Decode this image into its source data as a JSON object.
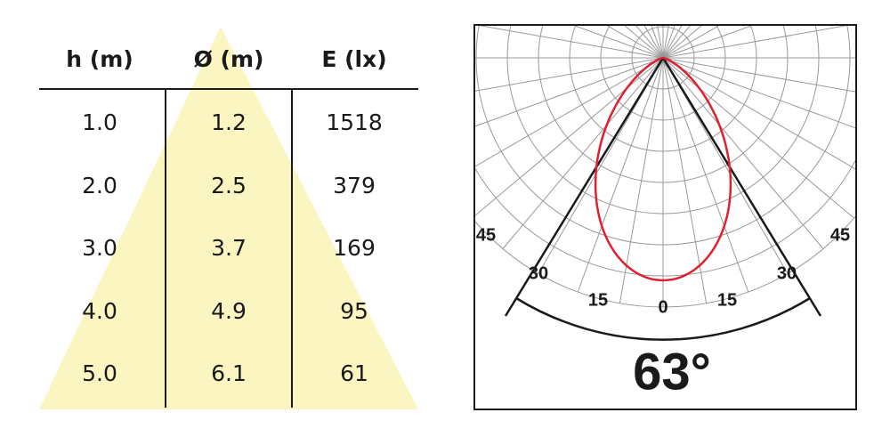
{
  "table": {
    "headers": [
      "h (m)",
      "Ø (m)",
      "E (lx)"
    ],
    "rows": [
      [
        "1.0",
        "1.2",
        "1518"
      ],
      [
        "2.0",
        "2.5",
        "379"
      ],
      [
        "3.0",
        "3.7",
        "169"
      ],
      [
        "4.0",
        "4.9",
        "95"
      ],
      [
        "5.0",
        "6.1",
        "61"
      ]
    ]
  },
  "polar": {
    "angle_labels": [
      "45",
      "30",
      "15",
      "0",
      "15",
      "30",
      "45"
    ],
    "beam_angle": "63°"
  }
}
